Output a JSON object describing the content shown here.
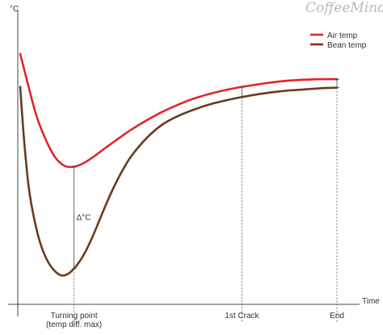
{
  "brand": "CoffeeMind",
  "chart_data": {
    "type": "line",
    "title": "",
    "xlabel": "Time",
    "ylabel": "°C",
    "xlim": [
      0,
      100
    ],
    "ylim": [
      0,
      100
    ],
    "grid": false,
    "legend_position": "top-right",
    "series": [
      {
        "name": "Air temp",
        "color": "#e0262b",
        "x": [
          0,
          2,
          5,
          8,
          11,
          14,
          17,
          20,
          23,
          27,
          31,
          35,
          40,
          45,
          50,
          55,
          60,
          65,
          70,
          75,
          80,
          85,
          90,
          95,
          100
        ],
        "y": [
          91,
          82,
          69,
          60,
          53.5,
          50.3,
          50,
          51.3,
          53.5,
          56.9,
          60.2,
          63.4,
          66.9,
          70,
          72.6,
          74.8,
          76.5,
          77.9,
          79,
          79.9,
          80.7,
          81.3,
          81.6,
          81.8,
          81.8
        ]
      },
      {
        "name": "Bean temp",
        "color": "#6b3a1e",
        "x": [
          0,
          1,
          2,
          3,
          5,
          7,
          9,
          11,
          13,
          15,
          17,
          19,
          21,
          23,
          25,
          27,
          29,
          32,
          35,
          40,
          45,
          50,
          55,
          60,
          65,
          70,
          75,
          80,
          85,
          90,
          95,
          100
        ],
        "y": [
          79,
          63,
          50,
          40,
          28,
          20,
          15,
          12,
          10.5,
          11,
          13,
          16,
          20,
          25,
          30.5,
          36,
          41.2,
          48,
          53.7,
          60.5,
          65.4,
          68.5,
          70.8,
          72.7,
          74.1,
          75.3,
          76.3,
          77.1,
          77.7,
          78.1,
          78.5,
          78.7
        ]
      }
    ],
    "markers": [
      {
        "label": "Turning point\n(temp diff. max)",
        "x": 17
      },
      {
        "label": "1st Crack",
        "x": 70
      },
      {
        "label": "End",
        "x": 100
      }
    ],
    "annotations": [
      {
        "text": "Δ°C",
        "x": 17
      }
    ]
  }
}
